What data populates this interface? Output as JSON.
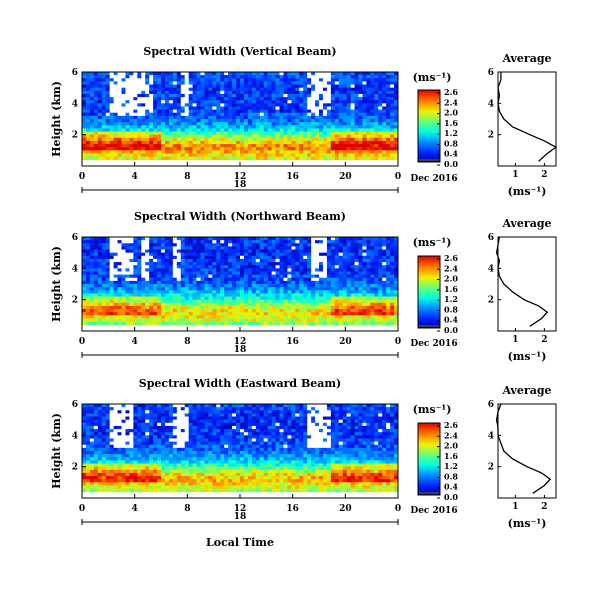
{
  "panels": [
    {
      "title": "Spectral Width (Vertical Beam)",
      "avg_title": "Average"
    },
    {
      "title": "Spectral Width (Northward Beam)",
      "avg_title": "Average"
    },
    {
      "title": "Spectral Width (Eastward Beam)",
      "avg_title": "Average"
    }
  ],
  "ylabel": "Height (km)",
  "y_ticks": [
    "6",
    "4",
    "2"
  ],
  "x_ticks": [
    "0",
    "4",
    "8",
    "12",
    "16",
    "20",
    "0"
  ],
  "date_tick": "18",
  "date_label": "Dec 2016",
  "xlabel": "Local Time",
  "colorbar_unit": "(ms⁻¹)",
  "colorbar_ticks": [
    "2.6",
    "2.4",
    "2.0",
    "1.6",
    "1.2",
    "0.8",
    "0.4",
    "0.0"
  ],
  "avg_xlabel": "(ms⁻¹)",
  "avg_x_ticks": [
    "1",
    "2"
  ],
  "avg_y_ticks": [
    "6",
    "4",
    "2"
  ],
  "chart_data": [
    {
      "type": "heatmap",
      "title": "Spectral Width (Vertical Beam)",
      "xlabel": "",
      "ylabel": "Height (km)",
      "x_range_hours": [
        0,
        24
      ],
      "y_range_km": [
        0,
        6
      ],
      "color_range": [
        0,
        2.8
      ],
      "units": "ms-1",
      "profile": [
        [
          0.3,
          1.8
        ],
        [
          0.8,
          2.1
        ],
        [
          1.2,
          2.4
        ],
        [
          1.6,
          2.0
        ],
        [
          2.0,
          1.5
        ],
        [
          2.5,
          0.9
        ],
        [
          3.0,
          0.6
        ],
        [
          3.5,
          0.45
        ],
        [
          4.0,
          0.4
        ],
        [
          4.5,
          0.45
        ],
        [
          5.0,
          0.4
        ],
        [
          5.5,
          0.5
        ],
        [
          6.0,
          0.5
        ]
      ],
      "white_gaps": [
        [
          2,
          5.5
        ],
        [
          7.5,
          8
        ],
        [
          17,
          19
        ]
      ]
    },
    {
      "type": "heatmap",
      "title": "Spectral Width (Northward Beam)",
      "xlabel": "",
      "ylabel": "Height (km)",
      "x_range_hours": [
        0,
        24
      ],
      "y_range_km": [
        0,
        6
      ],
      "color_range": [
        0,
        2.8
      ],
      "units": "ms-1",
      "profile": [
        [
          0.3,
          1.5
        ],
        [
          0.8,
          1.9
        ],
        [
          1.2,
          2.1
        ],
        [
          1.6,
          1.8
        ],
        [
          2.0,
          1.3
        ],
        [
          2.5,
          0.9
        ],
        [
          3.0,
          0.6
        ],
        [
          3.5,
          0.45
        ],
        [
          4.0,
          0.4
        ],
        [
          4.5,
          0.45
        ],
        [
          5.0,
          0.35
        ],
        [
          5.5,
          0.4
        ],
        [
          6.0,
          0.45
        ]
      ],
      "white_gaps": [
        [
          2,
          4
        ],
        [
          4.5,
          5
        ],
        [
          7,
          7.5
        ],
        [
          17.5,
          18.5
        ]
      ]
    },
    {
      "type": "heatmap",
      "title": "Spectral Width (Eastward Beam)",
      "xlabel": "Local Time",
      "ylabel": "Height (km)",
      "x_range_hours": [
        0,
        24
      ],
      "y_range_km": [
        0,
        6
      ],
      "color_range": [
        0,
        2.8
      ],
      "units": "ms-1",
      "profile": [
        [
          0.3,
          1.6
        ],
        [
          0.8,
          2.0
        ],
        [
          1.2,
          2.2
        ],
        [
          1.6,
          1.9
        ],
        [
          2.0,
          1.4
        ],
        [
          2.5,
          0.9
        ],
        [
          3.0,
          0.6
        ],
        [
          3.5,
          0.5
        ],
        [
          4.0,
          0.4
        ],
        [
          4.5,
          0.4
        ],
        [
          5.0,
          0.35
        ],
        [
          5.5,
          0.4
        ],
        [
          6.0,
          0.5
        ]
      ],
      "white_gaps": [
        [
          2,
          4
        ],
        [
          7,
          8
        ],
        [
          17,
          19
        ]
      ]
    }
  ]
}
